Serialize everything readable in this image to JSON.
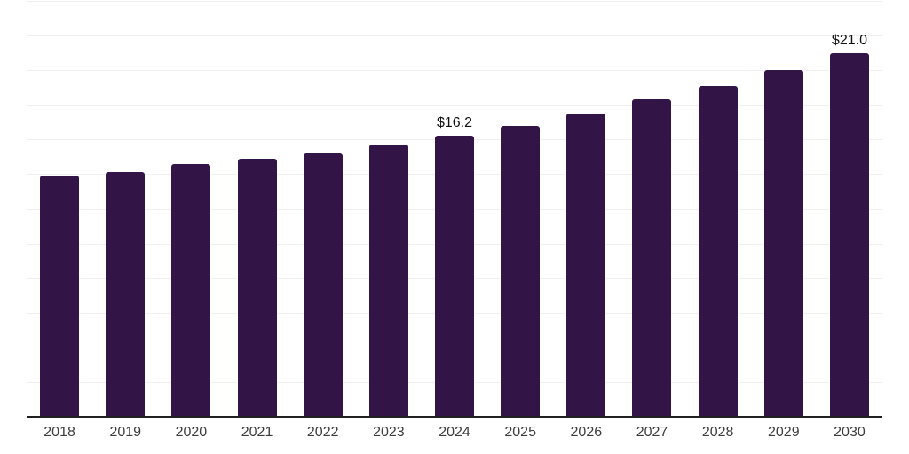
{
  "chart_data": {
    "type": "bar",
    "categories": [
      "2018",
      "2019",
      "2020",
      "2021",
      "2022",
      "2023",
      "2024",
      "2025",
      "2026",
      "2027",
      "2028",
      "2029",
      "2030"
    ],
    "values": [
      13.9,
      14.1,
      14.6,
      14.9,
      15.2,
      15.7,
      16.2,
      16.8,
      17.5,
      18.3,
      19.1,
      20.0,
      21.0
    ],
    "data_labels": [
      "",
      "",
      "",
      "",
      "",
      "",
      "$16.2",
      "",
      "",
      "",
      "",
      "",
      "$21.0"
    ],
    "title": "",
    "xlabel": "",
    "ylabel": "",
    "ylim": [
      0,
      24
    ],
    "gridline_step": 2,
    "grid": true,
    "legend": false,
    "bar_color": "#331447"
  },
  "colors": {
    "background": "#ffffff",
    "bar": "#331447",
    "gridline": "#f0f0f2",
    "axis_line": "#1f1f1f",
    "tick_label": "#3d3d3d",
    "data_label": "#111111"
  }
}
